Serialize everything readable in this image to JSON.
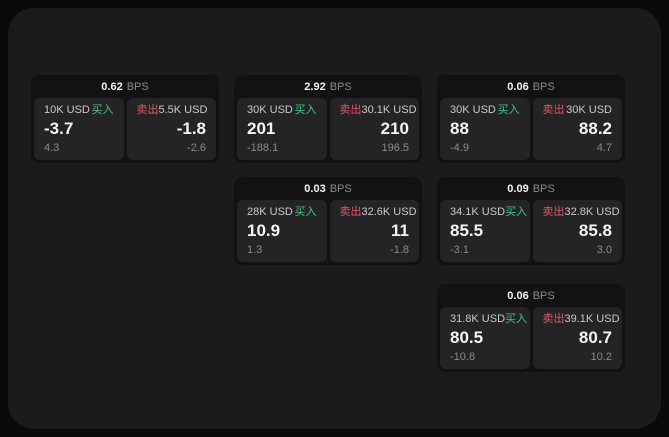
{
  "labels": {
    "buy": "买入",
    "sell": "卖出",
    "bps_unit": "BPS"
  },
  "colors": {
    "bg-outer": "#0a0a0a",
    "bg-surface": "#1b1b1c",
    "bg-card": "#121213",
    "bg-pane": "#242426",
    "text-primary": "#f5f5f5",
    "text-label": "#c9c9c9",
    "text-muted": "#8b8b8b",
    "buy-green": "#3dc97e",
    "sell-red": "#e05666"
  },
  "cards": [
    {
      "bps": "0.62",
      "buy": {
        "size": "10K USD",
        "value": "-3.7",
        "sub": "4.3"
      },
      "sell": {
        "size": "5.5K USD",
        "value": "-1.8",
        "sub": "-2.6"
      }
    },
    {
      "bps": "2.92",
      "buy": {
        "size": "30K USD",
        "value": "201",
        "sub": "-188.1"
      },
      "sell": {
        "size": "30.1K USD",
        "value": "210",
        "sub": "196.5"
      }
    },
    {
      "bps": "0.06",
      "buy": {
        "size": "30K USD",
        "value": "88",
        "sub": "-4.9"
      },
      "sell": {
        "size": "30K USD",
        "value": "88.2",
        "sub": "4.7"
      }
    },
    {
      "bps": "0.03",
      "buy": {
        "size": "28K USD",
        "value": "10.9",
        "sub": "1.3"
      },
      "sell": {
        "size": "32.6K USD",
        "value": "11",
        "sub": "-1.8"
      }
    },
    {
      "bps": "0.09",
      "buy": {
        "size": "34.1K USD",
        "value": "85.5",
        "sub": "-3.1"
      },
      "sell": {
        "size": "32.8K USD",
        "value": "85.8",
        "sub": "3.0"
      }
    },
    {
      "bps": "0.06",
      "buy": {
        "size": "31.8K USD",
        "value": "80.5",
        "sub": "-10.8"
      },
      "sell": {
        "size": "39.1K USD",
        "value": "80.7",
        "sub": "10.2"
      }
    }
  ]
}
